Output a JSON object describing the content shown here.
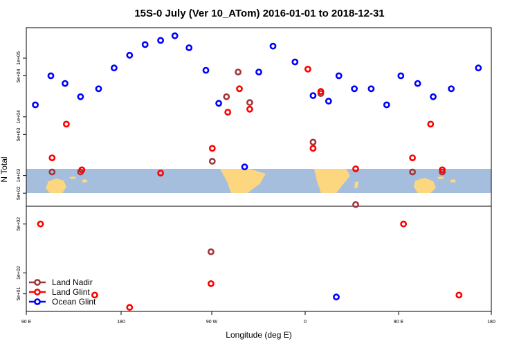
{
  "chart_data": {
    "type": "scatter",
    "title": "15S-0 July (Ver 10_ATom)   2016-01-01 to 2018-12-31",
    "xlabel": "Longitude (deg E)",
    "ylabel": "N Total",
    "x_ticks": [
      "90 E",
      "180",
      "90 W",
      "0",
      "90 E",
      "180"
    ],
    "upper_y_ticks": [
      "5e+02",
      "1e+03",
      "5e+03",
      "1e+04",
      "5e+04",
      "1e+05"
    ],
    "lower_y_ticks": [
      "5e+01",
      "1e+02",
      "5e+02"
    ],
    "colors": {
      "land_nadir": "#a0373a",
      "land_glint": "#ff0000",
      "ocean_glint": "#0000ff",
      "map_ocean": "#a6bedd",
      "map_land": "#fcd77f"
    },
    "legend": {
      "position": "bottom-left",
      "entries": [
        {
          "label": "Land Nadir",
          "color": "#a0373a"
        },
        {
          "label": "Land Glint",
          "color": "#ff0000"
        },
        {
          "label": "Ocean Glint",
          "color": "#0000ff"
        }
      ]
    },
    "x_range_deg_e": [
      90,
      450
    ],
    "upper_y_range": [
      300,
      330000
    ],
    "upper_y_scale": "log",
    "lower_y_range": [
      28,
      900
    ],
    "lower_y_scale": "log",
    "series": [
      {
        "name": "Land Nadir",
        "upper": [
          {
            "lon": 110,
            "y": 1150
          },
          {
            "lon": 132,
            "y": 1150
          },
          {
            "lon": 234,
            "y": 1750
          },
          {
            "lon": 245,
            "y": 22000
          },
          {
            "lon": 254,
            "y": 58000
          },
          {
            "lon": 263,
            "y": 17500
          },
          {
            "lon": 312,
            "y": 3700
          },
          {
            "lon": 318,
            "y": 25000
          },
          {
            "lon": 345,
            "y": 320
          },
          {
            "lon": 389,
            "y": 1150
          },
          {
            "lon": 412,
            "y": 1150
          }
        ],
        "lower": [
          {
            "lon": 233,
            "y": 200
          }
        ]
      },
      {
        "name": "Land Glint",
        "upper": [
          {
            "lon": 110,
            "y": 2000
          },
          {
            "lon": 121,
            "y": 7500
          },
          {
            "lon": 133,
            "y": 1250
          },
          {
            "lon": 194,
            "y": 1100
          },
          {
            "lon": 234,
            "y": 2900
          },
          {
            "lon": 246,
            "y": 12000
          },
          {
            "lon": 255,
            "y": 30000
          },
          {
            "lon": 263,
            "y": 13500
          },
          {
            "lon": 312,
            "y": 2900
          },
          {
            "lon": 308,
            "y": 65000
          },
          {
            "lon": 318,
            "y": 27000
          },
          {
            "lon": 345,
            "y": 1300
          },
          {
            "lon": 389,
            "y": 2000
          },
          {
            "lon": 403,
            "y": 7500
          },
          {
            "lon": 412,
            "y": 1250
          }
        ],
        "lower": [
          {
            "lon": 101,
            "y": 500
          },
          {
            "lon": 143,
            "y": 48
          },
          {
            "lon": 170,
            "y": 32
          },
          {
            "lon": 233,
            "y": 70
          },
          {
            "lon": 382,
            "y": 500
          },
          {
            "lon": 425,
            "y": 48
          }
        ]
      },
      {
        "name": "Ocean Glint",
        "upper": [
          {
            "lon": 97,
            "y": 16000
          },
          {
            "lon": 109,
            "y": 50000
          },
          {
            "lon": 120,
            "y": 37000
          },
          {
            "lon": 132,
            "y": 22000
          },
          {
            "lon": 146,
            "y": 30000
          },
          {
            "lon": 158,
            "y": 68000
          },
          {
            "lon": 170,
            "y": 112000
          },
          {
            "lon": 182,
            "y": 170000
          },
          {
            "lon": 194,
            "y": 200000
          },
          {
            "lon": 205,
            "y": 240000
          },
          {
            "lon": 216,
            "y": 150000
          },
          {
            "lon": 229,
            "y": 62000
          },
          {
            "lon": 239,
            "y": 17000
          },
          {
            "lon": 259,
            "y": 1400
          },
          {
            "lon": 270,
            "y": 58000
          },
          {
            "lon": 281,
            "y": 160000
          },
          {
            "lon": 298,
            "y": 86000
          },
          {
            "lon": 312,
            "y": 23000
          },
          {
            "lon": 324,
            "y": 18500
          },
          {
            "lon": 332,
            "y": 50000
          },
          {
            "lon": 344,
            "y": 30000
          },
          {
            "lon": 357,
            "y": 30000
          },
          {
            "lon": 369,
            "y": 16000
          },
          {
            "lon": 380,
            "y": 50000
          },
          {
            "lon": 393,
            "y": 37000
          },
          {
            "lon": 405,
            "y": 22000
          },
          {
            "lon": 419,
            "y": 30000
          },
          {
            "lon": 440,
            "y": 68000
          }
        ],
        "lower": [
          {
            "lon": 330,
            "y": 45
          }
        ]
      }
    ]
  }
}
